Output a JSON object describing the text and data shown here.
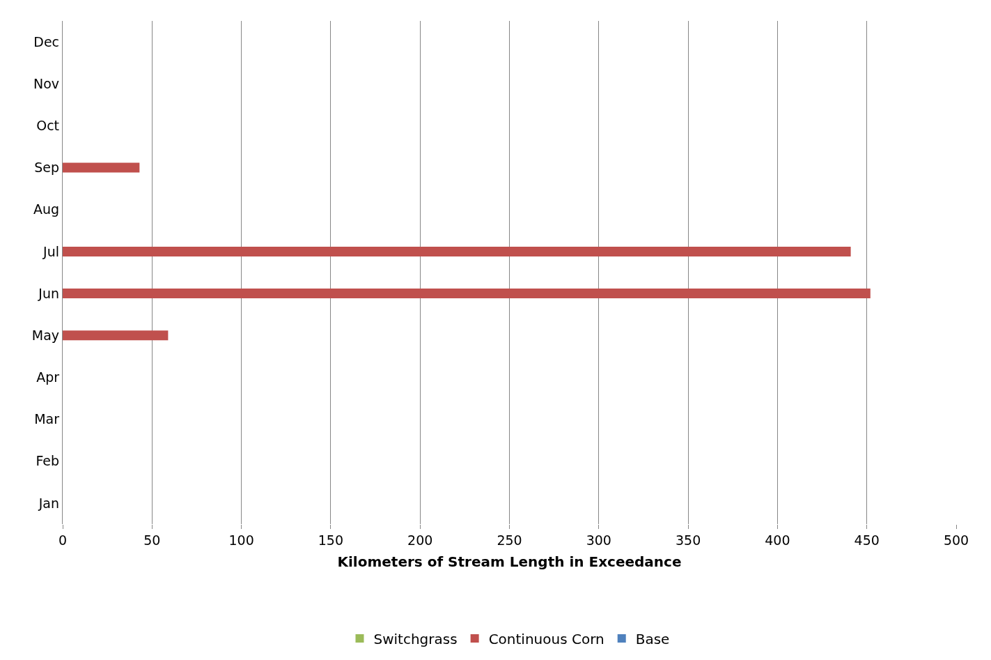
{
  "chart_data": {
    "type": "bar",
    "orientation": "horizontal",
    "xlabel": "Kilometers of Stream Length in Exceedance",
    "categories": [
      "Dec",
      "Nov",
      "Oct",
      "Sep",
      "Aug",
      "Jul",
      "Jun",
      "May",
      "Apr",
      "Mar",
      "Feb",
      "Jan"
    ],
    "series": [
      {
        "name": "Switchgrass",
        "color": "#9bbb59",
        "values": [
          0,
          0,
          0,
          0,
          0,
          0,
          0,
          0,
          0,
          0,
          0,
          0
        ]
      },
      {
        "name": "Continuous Corn",
        "color": "#c0504d",
        "values": [
          0,
          0,
          0,
          43,
          0,
          441,
          452,
          59,
          0,
          0,
          0,
          0
        ]
      },
      {
        "name": "Base",
        "color": "#4f81bd",
        "values": [
          0,
          0,
          0,
          0,
          0,
          0,
          0,
          0,
          0,
          0,
          0,
          0
        ]
      }
    ],
    "xlim": [
      0,
      500
    ],
    "xticks": [
      0,
      50,
      100,
      150,
      200,
      250,
      300,
      350,
      400,
      450,
      500
    ],
    "grid": "x",
    "legend": "bottom"
  }
}
